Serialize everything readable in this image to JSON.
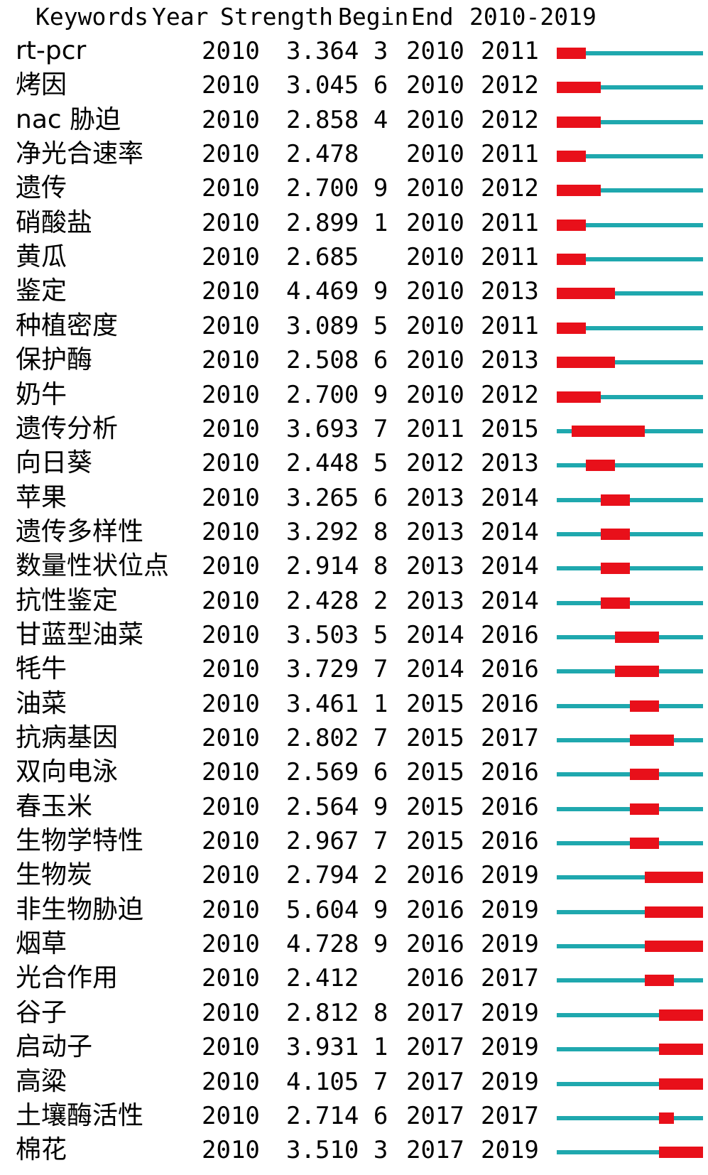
{
  "chart_data": {
    "type": "table",
    "headers": {
      "keywords": "Keywords",
      "year": "Year",
      "strength": "Strength",
      "begin": "Begin",
      "end": "End",
      "range": "2010-2019"
    },
    "range_start": 2010,
    "range_end": 2019,
    "colors": {
      "burst": "#e8101a",
      "baseline": "#1fa8ae"
    },
    "rows": [
      {
        "keyword": "rt-pcr",
        "year": "2010",
        "strength": "3.364 3",
        "begin": "2010",
        "end": "2011"
      },
      {
        "keyword": "烤因",
        "year": "2010",
        "strength": "3.045 6",
        "begin": "2010",
        "end": "2012"
      },
      {
        "keyword": "nac 胁迫",
        "year": "2010",
        "strength": "2.858 4",
        "begin": "2010",
        "end": "2012"
      },
      {
        "keyword": "净光合速率",
        "year": "2010",
        "strength": "2.478",
        "begin": "2010",
        "end": "2011"
      },
      {
        "keyword": "遗传",
        "year": "2010",
        "strength": "2.700 9",
        "begin": "2010",
        "end": "2012"
      },
      {
        "keyword": "硝酸盐",
        "year": "2010",
        "strength": "2.899 1",
        "begin": "2010",
        "end": "2011"
      },
      {
        "keyword": "黄瓜",
        "year": "2010",
        "strength": "2.685",
        "begin": "2010",
        "end": "2011"
      },
      {
        "keyword": "鉴定",
        "year": "2010",
        "strength": "4.469 9",
        "begin": "2010",
        "end": "2013"
      },
      {
        "keyword": "种植密度",
        "year": "2010",
        "strength": "3.089 5",
        "begin": "2010",
        "end": "2011"
      },
      {
        "keyword": "保护酶",
        "year": "2010",
        "strength": "2.508 6",
        "begin": "2010",
        "end": "2013"
      },
      {
        "keyword": "奶牛",
        "year": "2010",
        "strength": "2.700 9",
        "begin": "2010",
        "end": "2012"
      },
      {
        "keyword": "遗传分析",
        "year": "2010",
        "strength": "3.693 7",
        "begin": "2011",
        "end": "2015"
      },
      {
        "keyword": "向日葵",
        "year": "2010",
        "strength": "2.448 5",
        "begin": "2012",
        "end": "2013"
      },
      {
        "keyword": "苹果",
        "year": "2010",
        "strength": "3.265 6",
        "begin": "2013",
        "end": "2014"
      },
      {
        "keyword": "遗传多样性",
        "year": "2010",
        "strength": "3.292 8",
        "begin": "2013",
        "end": "2014"
      },
      {
        "keyword": "数量性状位点",
        "year": "2010",
        "strength": "2.914 8",
        "begin": "2013",
        "end": "2014"
      },
      {
        "keyword": "抗性鉴定",
        "year": "2010",
        "strength": "2.428 2",
        "begin": "2013",
        "end": "2014"
      },
      {
        "keyword": "甘蓝型油菜",
        "year": "2010",
        "strength": "3.503 5",
        "begin": "2014",
        "end": "2016"
      },
      {
        "keyword": "牦牛",
        "year": "2010",
        "strength": "3.729 7",
        "begin": "2014",
        "end": "2016"
      },
      {
        "keyword": "油菜",
        "year": "2010",
        "strength": "3.461 1",
        "begin": "2015",
        "end": "2016"
      },
      {
        "keyword": "抗病基因",
        "year": "2010",
        "strength": "2.802 7",
        "begin": "2015",
        "end": "2017"
      },
      {
        "keyword": "双向电泳",
        "year": "2010",
        "strength": "2.569 6",
        "begin": "2015",
        "end": "2016"
      },
      {
        "keyword": "春玉米",
        "year": "2010",
        "strength": "2.564 9",
        "begin": "2015",
        "end": "2016"
      },
      {
        "keyword": "生物学特性",
        "year": "2010",
        "strength": "2.967 7",
        "begin": "2015",
        "end": "2016"
      },
      {
        "keyword": "生物炭",
        "year": "2010",
        "strength": "2.794 2",
        "begin": "2016",
        "end": "2019"
      },
      {
        "keyword": "非生物胁迫",
        "year": "2010",
        "strength": "5.604 9",
        "begin": "2016",
        "end": "2019"
      },
      {
        "keyword": "烟草",
        "year": "2010",
        "strength": "4.728 9",
        "begin": "2016",
        "end": "2019"
      },
      {
        "keyword": "光合作用",
        "year": "2010",
        "strength": "2.412",
        "begin": "2016",
        "end": "2017"
      },
      {
        "keyword": "谷子",
        "year": "2010",
        "strength": "2.812 8",
        "begin": "2017",
        "end": "2019"
      },
      {
        "keyword": "启动子",
        "year": "2010",
        "strength": "3.931 1",
        "begin": "2017",
        "end": "2019"
      },
      {
        "keyword": "高粱",
        "year": "2010",
        "strength": "4.105 7",
        "begin": "2017",
        "end": "2019"
      },
      {
        "keyword": "土壤酶活性",
        "year": "2010",
        "strength": "2.714 6",
        "begin": "2017",
        "end": "2017"
      },
      {
        "keyword": "棉花",
        "year": "2010",
        "strength": "3.510 3",
        "begin": "2017",
        "end": "2019"
      }
    ]
  }
}
